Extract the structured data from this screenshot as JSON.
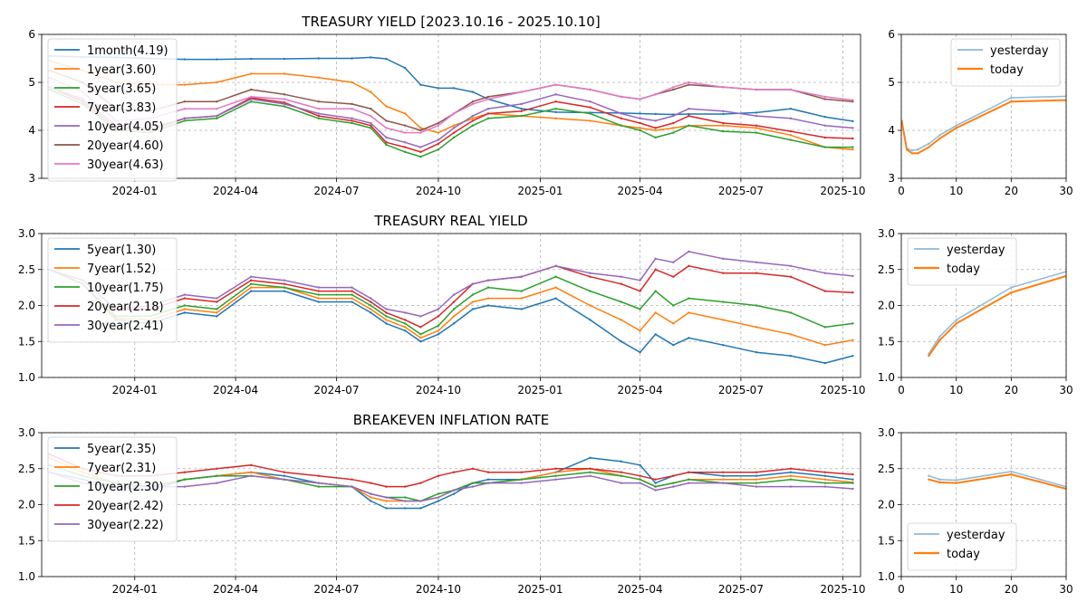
{
  "chart_data": [
    {
      "type": "line",
      "title": "TREASURY YIELD [2023.10.16 - 2025.10.10]",
      "x_range": [
        "2023-10-16",
        "2025-10-10"
      ],
      "xticks": [
        "2024-01",
        "2024-04",
        "2024-07",
        "2024-10",
        "2025-01",
        "2025-04",
        "2025-07",
        "2025-10"
      ],
      "ylim": [
        3,
        6
      ],
      "yticks": [
        "3",
        "4",
        "5",
        "6"
      ],
      "grid": true,
      "legend_position": "top-left",
      "x_dates": [
        "2023-10-16",
        "2023-11-15",
        "2023-12-15",
        "2024-01-15",
        "2024-02-15",
        "2024-03-15",
        "2024-04-15",
        "2024-05-15",
        "2024-06-15",
        "2024-07-15",
        "2024-08-01",
        "2024-08-15",
        "2024-09-01",
        "2024-09-15",
        "2024-10-01",
        "2024-10-15",
        "2024-11-01",
        "2024-11-15",
        "2024-12-15",
        "2025-01-15",
        "2025-02-15",
        "2025-03-15",
        "2025-04-01",
        "2025-04-15",
        "2025-05-01",
        "2025-05-15",
        "2025-06-15",
        "2025-07-15",
        "2025-08-15",
        "2025-09-15",
        "2025-10-10"
      ],
      "series": [
        {
          "name": "1month(4.19)",
          "color": "#1f77b4",
          "values": [
            5.55,
            5.53,
            5.52,
            5.5,
            5.48,
            5.48,
            5.49,
            5.49,
            5.5,
            5.5,
            5.52,
            5.49,
            5.3,
            4.95,
            4.88,
            4.88,
            4.8,
            4.65,
            4.45,
            4.38,
            4.37,
            4.36,
            4.35,
            4.34,
            4.33,
            4.34,
            4.34,
            4.37,
            4.45,
            4.28,
            4.19
          ]
        },
        {
          "name": "1year(3.60)",
          "color": "#ff7f0e",
          "values": [
            5.45,
            5.25,
            5.0,
            4.95,
            4.95,
            5.0,
            5.18,
            5.18,
            5.1,
            5.0,
            4.8,
            4.5,
            4.35,
            4.05,
            3.95,
            4.1,
            4.25,
            4.35,
            4.3,
            4.25,
            4.2,
            4.1,
            4.05,
            4.0,
            4.05,
            4.1,
            4.1,
            4.05,
            3.9,
            3.65,
            3.6
          ]
        },
        {
          "name": "5year(3.65)",
          "color": "#2ca02c",
          "values": [
            4.85,
            4.55,
            4.0,
            3.95,
            4.2,
            4.25,
            4.6,
            4.5,
            4.25,
            4.15,
            4.05,
            3.7,
            3.55,
            3.45,
            3.6,
            3.85,
            4.1,
            4.25,
            4.3,
            4.45,
            4.35,
            4.1,
            4.0,
            3.85,
            3.95,
            4.1,
            3.98,
            3.95,
            3.8,
            3.65,
            3.65
          ]
        },
        {
          "name": "7year(3.83)",
          "color": "#d62728",
          "values": [
            4.9,
            4.6,
            4.05,
            4.0,
            4.25,
            4.3,
            4.68,
            4.58,
            4.3,
            4.2,
            4.1,
            3.75,
            3.65,
            3.55,
            3.72,
            3.95,
            4.2,
            4.35,
            4.4,
            4.6,
            4.48,
            4.25,
            4.15,
            4.05,
            4.15,
            4.3,
            4.15,
            4.1,
            3.98,
            3.85,
            3.83
          ]
        },
        {
          "name": "10year(4.05)",
          "color": "#9467bd",
          "values": [
            4.9,
            4.65,
            4.1,
            4.05,
            4.25,
            4.3,
            4.65,
            4.55,
            4.35,
            4.25,
            4.15,
            3.85,
            3.75,
            3.65,
            3.8,
            4.05,
            4.3,
            4.45,
            4.55,
            4.75,
            4.6,
            4.35,
            4.25,
            4.2,
            4.3,
            4.45,
            4.4,
            4.3,
            4.25,
            4.1,
            4.05
          ]
        },
        {
          "name": "20year(4.60)",
          "color": "#8c564b",
          "values": [
            5.25,
            5.0,
            4.45,
            4.4,
            4.6,
            4.6,
            4.85,
            4.75,
            4.6,
            4.55,
            4.45,
            4.2,
            4.1,
            4.0,
            4.15,
            4.35,
            4.6,
            4.7,
            4.8,
            4.95,
            4.85,
            4.7,
            4.65,
            4.75,
            4.85,
            4.95,
            4.9,
            4.85,
            4.85,
            4.65,
            4.6
          ]
        },
        {
          "name": "30year(4.63)",
          "color": "#e377c2",
          "values": [
            5.1,
            4.8,
            4.2,
            4.25,
            4.45,
            4.45,
            4.7,
            4.65,
            4.45,
            4.45,
            4.3,
            4.05,
            3.95,
            3.95,
            4.1,
            4.35,
            4.55,
            4.65,
            4.8,
            4.95,
            4.85,
            4.7,
            4.65,
            4.75,
            4.9,
            5.0,
            4.9,
            4.85,
            4.85,
            4.7,
            4.63
          ]
        }
      ]
    },
    {
      "type": "line",
      "xlim": [
        0,
        30
      ],
      "xticks": [
        "0",
        "10",
        "20",
        "30"
      ],
      "ylim": [
        3,
        6
      ],
      "yticks": [
        "3",
        "4",
        "5",
        "6"
      ],
      "grid": true,
      "legend_position": "top-right",
      "series": [
        {
          "name": "yesterday",
          "color": "#8db8da",
          "x": [
            0.08,
            1,
            2,
            3,
            5,
            7,
            10,
            20,
            30
          ],
          "values": [
            4.2,
            3.62,
            3.58,
            3.6,
            3.72,
            3.9,
            4.1,
            4.68,
            4.71
          ]
        },
        {
          "name": "today",
          "color": "#ff7f0e",
          "x": [
            0.08,
            1,
            2,
            3,
            5,
            7,
            10,
            20,
            30
          ],
          "values": [
            4.19,
            3.6,
            3.52,
            3.52,
            3.65,
            3.83,
            4.05,
            4.6,
            4.63
          ]
        }
      ]
    },
    {
      "type": "line",
      "title": "TREASURY REAL YIELD",
      "xticks": [
        "2024-01",
        "2024-04",
        "2024-07",
        "2024-10",
        "2025-01",
        "2025-04",
        "2025-07",
        "2025-10"
      ],
      "ylim": [
        1.0,
        3.0
      ],
      "yticks": [
        "1.0",
        "1.5",
        "2.0",
        "2.5",
        "3.0"
      ],
      "grid": true,
      "legend_position": "top-left",
      "x_dates": [
        "2023-10-16",
        "2023-11-15",
        "2023-12-15",
        "2024-01-15",
        "2024-02-15",
        "2024-03-15",
        "2024-04-15",
        "2024-05-15",
        "2024-06-15",
        "2024-07-15",
        "2024-08-01",
        "2024-08-15",
        "2024-09-01",
        "2024-09-15",
        "2024-10-01",
        "2024-10-15",
        "2024-11-01",
        "2024-11-15",
        "2024-12-15",
        "2025-01-15",
        "2025-02-15",
        "2025-03-15",
        "2025-04-01",
        "2025-04-15",
        "2025-05-01",
        "2025-05-15",
        "2025-06-15",
        "2025-07-15",
        "2025-08-15",
        "2025-09-15",
        "2025-10-10"
      ],
      "series": [
        {
          "name": "5year(1.30)",
          "color": "#1f77b4",
          "values": [
            2.5,
            2.3,
            1.8,
            1.75,
            1.9,
            1.85,
            2.2,
            2.2,
            2.05,
            2.05,
            1.9,
            1.75,
            1.65,
            1.5,
            1.6,
            1.75,
            1.95,
            2.0,
            1.95,
            2.1,
            1.8,
            1.5,
            1.35,
            1.6,
            1.45,
            1.55,
            1.45,
            1.35,
            1.3,
            1.2,
            1.3
          ]
        },
        {
          "name": "7year(1.52)",
          "color": "#ff7f0e",
          "values": [
            2.5,
            2.3,
            1.82,
            1.8,
            1.95,
            1.9,
            2.25,
            2.25,
            2.1,
            2.1,
            1.95,
            1.8,
            1.7,
            1.55,
            1.65,
            1.85,
            2.05,
            2.1,
            2.1,
            2.25,
            2.0,
            1.8,
            1.65,
            1.9,
            1.75,
            1.9,
            1.8,
            1.7,
            1.6,
            1.45,
            1.52
          ]
        },
        {
          "name": "10year(1.75)",
          "color": "#2ca02c",
          "values": [
            2.5,
            2.3,
            1.85,
            1.85,
            2.0,
            1.95,
            2.3,
            2.25,
            2.15,
            2.15,
            2.0,
            1.85,
            1.75,
            1.6,
            1.72,
            1.95,
            2.15,
            2.25,
            2.2,
            2.4,
            2.2,
            2.05,
            1.95,
            2.2,
            2.0,
            2.1,
            2.05,
            2.0,
            1.9,
            1.7,
            1.75
          ]
        },
        {
          "name": "20year(2.18)",
          "color": "#d62728",
          "values": [
            2.5,
            2.35,
            1.95,
            1.95,
            2.1,
            2.05,
            2.35,
            2.3,
            2.2,
            2.2,
            2.05,
            1.9,
            1.8,
            1.7,
            1.85,
            2.05,
            2.3,
            2.35,
            2.4,
            2.55,
            2.4,
            2.3,
            2.2,
            2.5,
            2.4,
            2.55,
            2.45,
            2.45,
            2.4,
            2.2,
            2.18
          ]
        },
        {
          "name": "30year(2.41)",
          "color": "#9467bd",
          "values": [
            2.5,
            2.35,
            1.95,
            2.0,
            2.15,
            2.1,
            2.4,
            2.35,
            2.25,
            2.25,
            2.1,
            1.95,
            1.9,
            1.85,
            1.95,
            2.15,
            2.3,
            2.35,
            2.4,
            2.55,
            2.45,
            2.4,
            2.35,
            2.65,
            2.6,
            2.75,
            2.65,
            2.6,
            2.55,
            2.45,
            2.41
          ]
        }
      ]
    },
    {
      "type": "line",
      "xlim": [
        0,
        30
      ],
      "xticks": [
        "0",
        "10",
        "20",
        "30"
      ],
      "ylim": [
        1.0,
        3.0
      ],
      "yticks": [
        "1.0",
        "1.5",
        "2.0",
        "2.5",
        "3.0"
      ],
      "grid": true,
      "legend_position": "top-left",
      "series": [
        {
          "name": "yesterday",
          "color": "#8db8da",
          "x": [
            5,
            7,
            10,
            20,
            30
          ],
          "values": [
            1.33,
            1.57,
            1.8,
            2.25,
            2.47
          ]
        },
        {
          "name": "today",
          "color": "#ff7f0e",
          "x": [
            5,
            7,
            10,
            20,
            30
          ],
          "values": [
            1.3,
            1.52,
            1.75,
            2.18,
            2.41
          ]
        }
      ]
    },
    {
      "type": "line",
      "title": "BREAKEVEN INFLATION RATE",
      "xticks": [
        "2024-01",
        "2024-04",
        "2024-07",
        "2024-10",
        "2025-01",
        "2025-04",
        "2025-07",
        "2025-10"
      ],
      "ylim": [
        1.0,
        3.0
      ],
      "yticks": [
        "1.0",
        "1.5",
        "2.0",
        "2.5",
        "3.0"
      ],
      "grid": true,
      "legend_position": "top-left",
      "x_dates": [
        "2023-10-16",
        "2023-11-15",
        "2023-12-15",
        "2024-01-15",
        "2024-02-15",
        "2024-03-15",
        "2024-04-15",
        "2024-05-15",
        "2024-06-15",
        "2024-07-15",
        "2024-08-01",
        "2024-08-15",
        "2024-09-01",
        "2024-09-15",
        "2024-10-01",
        "2024-10-15",
        "2024-11-01",
        "2024-11-15",
        "2024-12-15",
        "2025-01-15",
        "2025-02-15",
        "2025-03-15",
        "2025-04-01",
        "2025-04-15",
        "2025-05-01",
        "2025-05-15",
        "2025-06-15",
        "2025-07-15",
        "2025-08-15",
        "2025-09-15",
        "2025-10-10"
      ],
      "series": [
        {
          "name": "5year(2.35)",
          "color": "#1f77b4",
          "values": [
            2.45,
            2.35,
            2.25,
            2.2,
            2.35,
            2.4,
            2.45,
            2.4,
            2.3,
            2.25,
            2.05,
            1.95,
            1.95,
            1.95,
            2.05,
            2.15,
            2.3,
            2.35,
            2.35,
            2.45,
            2.65,
            2.6,
            2.55,
            2.3,
            2.4,
            2.45,
            2.4,
            2.4,
            2.45,
            2.4,
            2.35
          ]
        },
        {
          "name": "7year(2.31)",
          "color": "#ff7f0e",
          "values": [
            2.65,
            2.45,
            2.3,
            2.25,
            2.35,
            2.4,
            2.45,
            2.35,
            2.3,
            2.25,
            2.1,
            2.05,
            2.05,
            2.05,
            2.1,
            2.2,
            2.3,
            2.3,
            2.35,
            2.45,
            2.5,
            2.4,
            2.35,
            2.25,
            2.3,
            2.35,
            2.35,
            2.35,
            2.4,
            2.35,
            2.31
          ]
        },
        {
          "name": "10year(2.30)",
          "color": "#2ca02c",
          "values": [
            2.55,
            2.4,
            2.3,
            2.25,
            2.35,
            2.4,
            2.4,
            2.35,
            2.25,
            2.25,
            2.15,
            2.1,
            2.1,
            2.05,
            2.15,
            2.2,
            2.3,
            2.3,
            2.35,
            2.4,
            2.45,
            2.4,
            2.35,
            2.25,
            2.3,
            2.35,
            2.3,
            2.3,
            2.35,
            2.3,
            2.3
          ]
        },
        {
          "name": "20year(2.42)",
          "color": "#d62728",
          "values": [
            2.7,
            2.5,
            2.4,
            2.4,
            2.45,
            2.5,
            2.55,
            2.45,
            2.4,
            2.35,
            2.3,
            2.25,
            2.25,
            2.3,
            2.4,
            2.45,
            2.5,
            2.45,
            2.45,
            2.5,
            2.5,
            2.45,
            2.4,
            2.35,
            2.4,
            2.45,
            2.45,
            2.45,
            2.5,
            2.45,
            2.42
          ]
        },
        {
          "name": "30year(2.22)",
          "color": "#9467bd",
          "values": [
            2.45,
            2.3,
            2.25,
            2.25,
            2.25,
            2.3,
            2.4,
            2.35,
            2.3,
            2.25,
            2.15,
            2.1,
            2.05,
            2.05,
            2.1,
            2.2,
            2.25,
            2.3,
            2.3,
            2.35,
            2.4,
            2.3,
            2.3,
            2.2,
            2.25,
            2.3,
            2.3,
            2.25,
            2.25,
            2.25,
            2.22
          ]
        }
      ]
    },
    {
      "type": "line",
      "xlim": [
        0,
        30
      ],
      "xticks": [
        "0",
        "10",
        "20",
        "30"
      ],
      "ylim": [
        1.0,
        3.0
      ],
      "yticks": [
        "1.0",
        "1.5",
        "2.0",
        "2.5",
        "3.0"
      ],
      "grid": true,
      "legend_position": "bottom-left",
      "series": [
        {
          "name": "yesterday",
          "color": "#8db8da",
          "x": [
            5,
            7,
            10,
            20,
            30
          ],
          "values": [
            2.4,
            2.35,
            2.34,
            2.46,
            2.25
          ]
        },
        {
          "name": "today",
          "color": "#ff7f0e",
          "x": [
            5,
            7,
            10,
            20,
            30
          ],
          "values": [
            2.35,
            2.31,
            2.3,
            2.42,
            2.22
          ]
        }
      ]
    }
  ]
}
